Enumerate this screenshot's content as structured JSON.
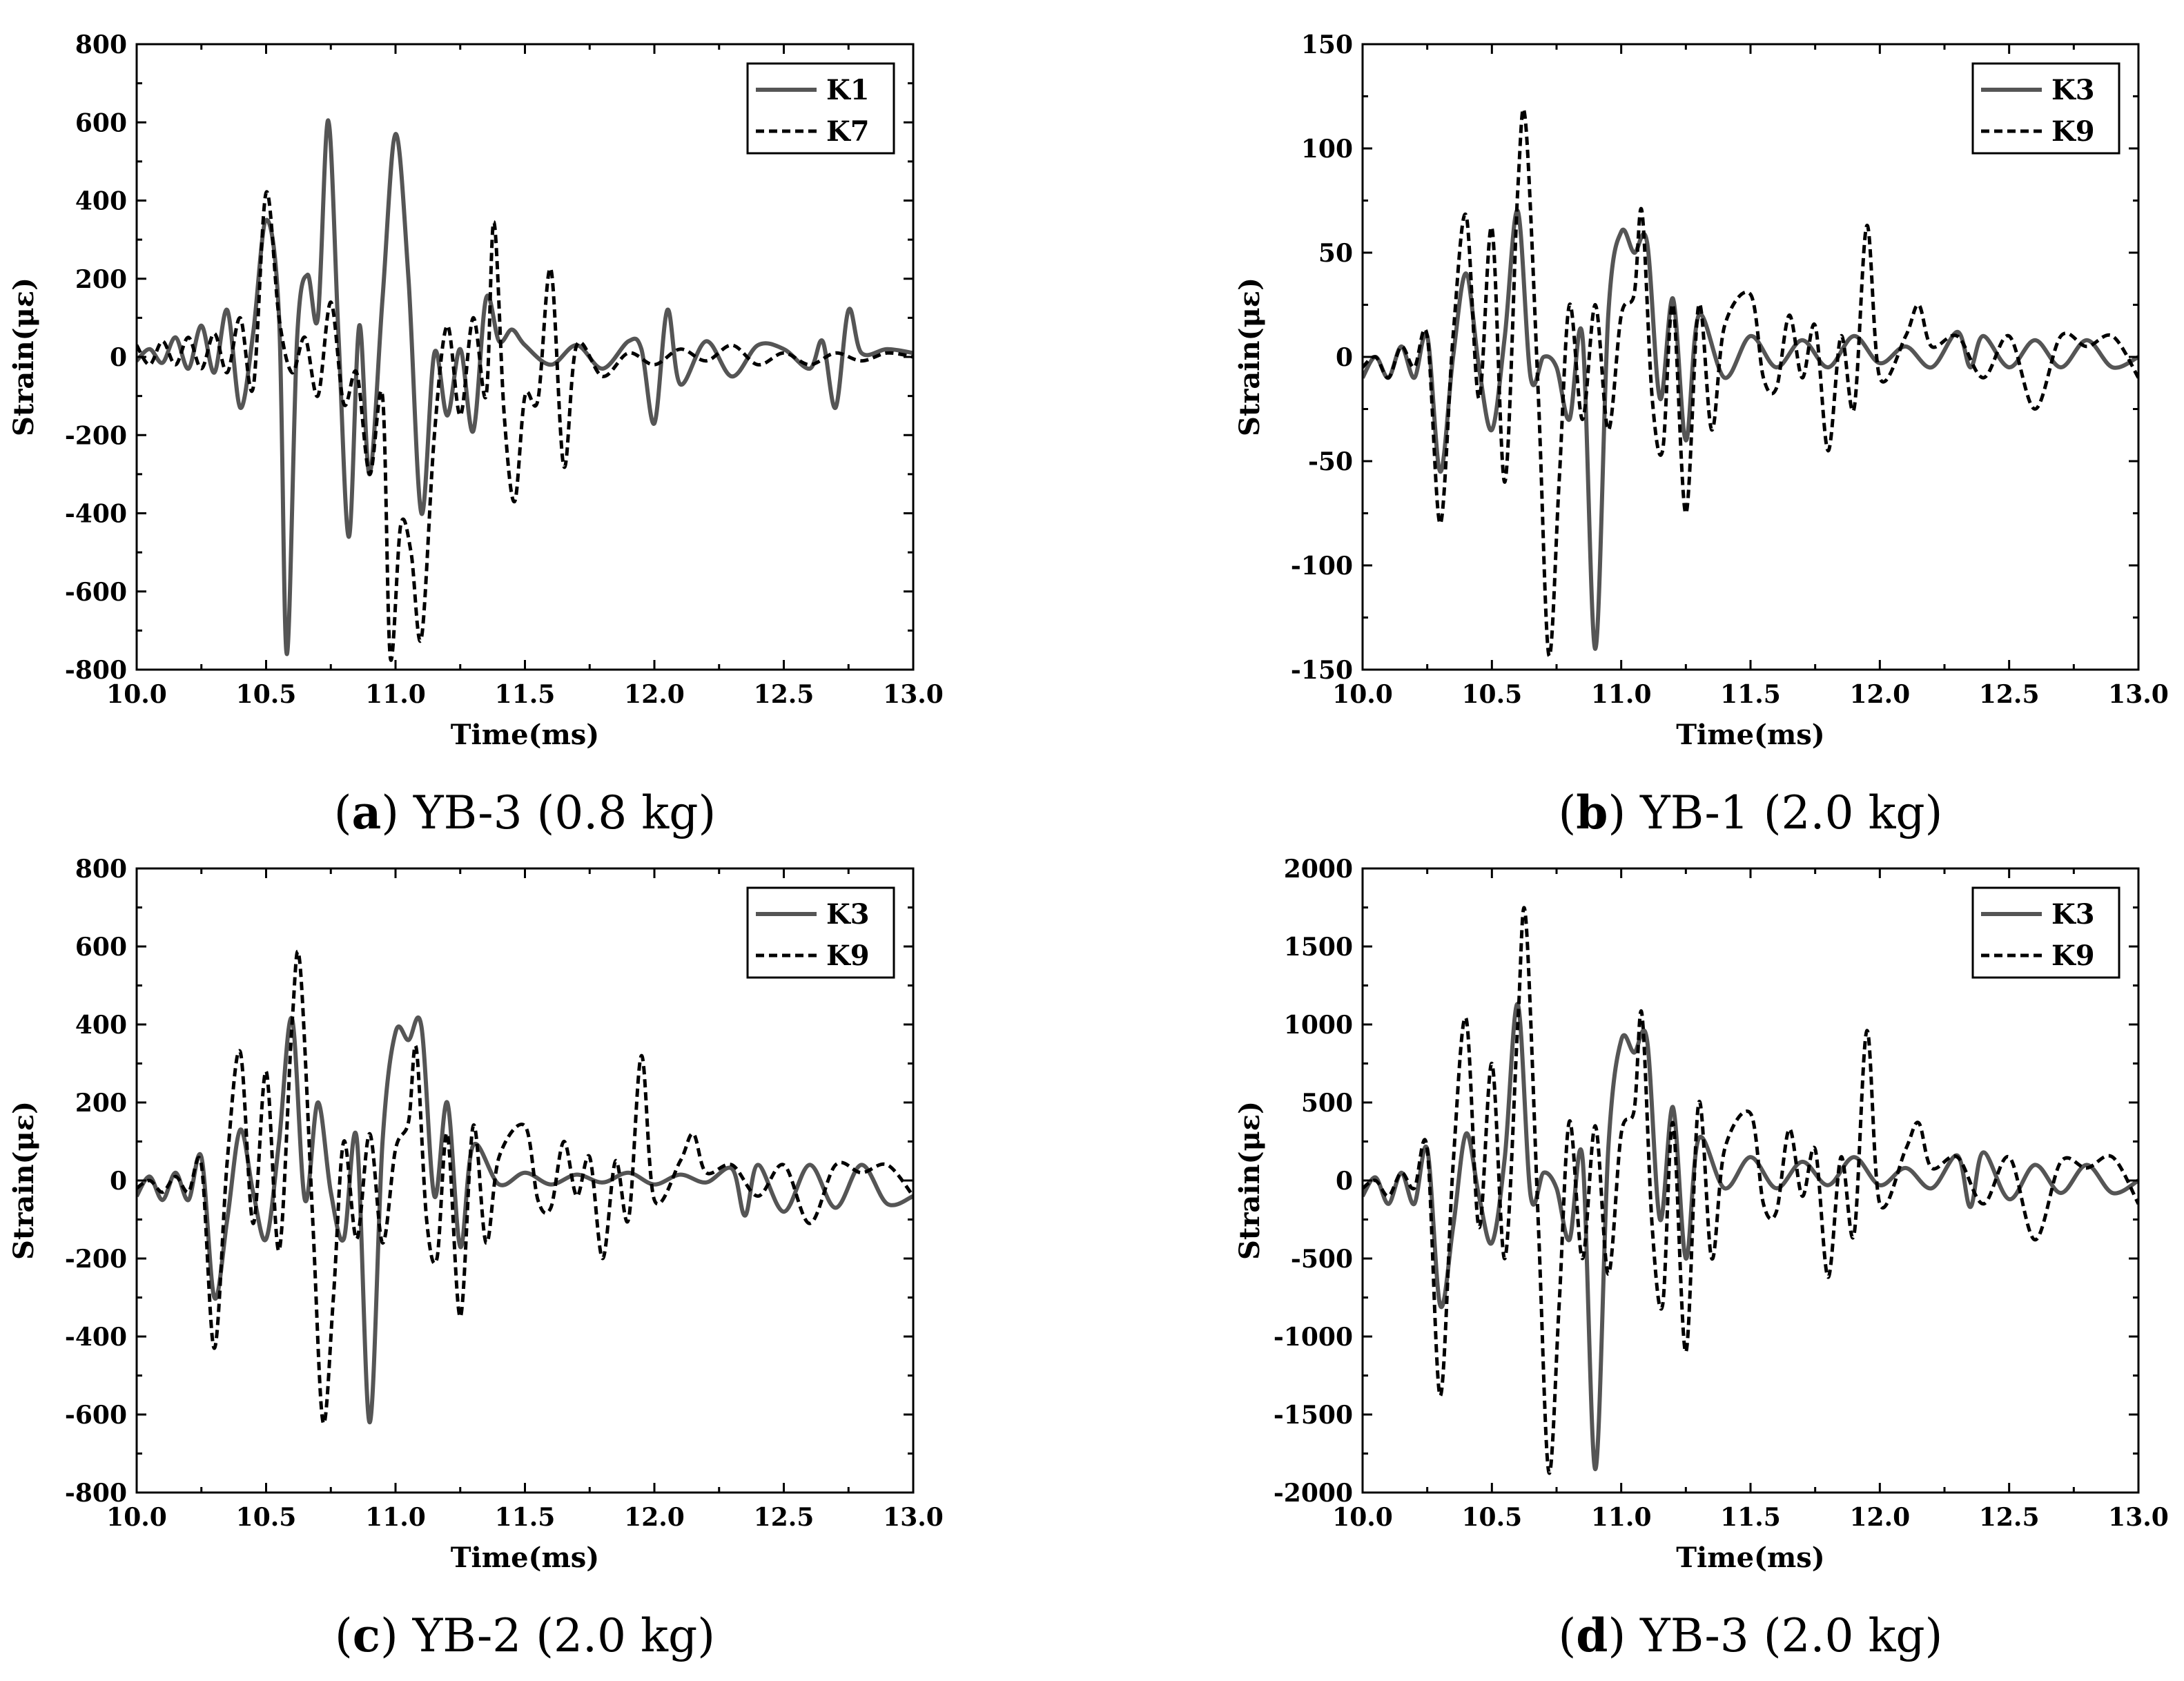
{
  "chart_data": [
    {
      "id": "a",
      "type": "line",
      "caption_letter": "a",
      "caption_text": "YB-3 (0.8 kg)",
      "xlabel": "Time(ms)",
      "ylabel": "Strain(με)",
      "xlim": [
        10.0,
        13.0
      ],
      "ylim": [
        -800,
        800
      ],
      "xticks": [
        "10.0",
        "10.5",
        "11.0",
        "11.5",
        "12.0",
        "12.5",
        "13.0"
      ],
      "yticks": [
        "-800",
        "-600",
        "-400",
        "-200",
        "0",
        "200",
        "400",
        "600",
        "800"
      ],
      "legend_position": "top-right",
      "series": [
        {
          "name": "K1",
          "style": "solid",
          "color": "#555555",
          "x": [
            10.0,
            10.05,
            10.1,
            10.15,
            10.2,
            10.25,
            10.3,
            10.35,
            10.4,
            10.45,
            10.5,
            10.55,
            10.58,
            10.62,
            10.66,
            10.7,
            10.74,
            10.78,
            10.82,
            10.86,
            10.9,
            10.95,
            11.0,
            11.05,
            11.1,
            11.15,
            11.2,
            11.25,
            11.3,
            11.35,
            11.4,
            11.45,
            11.5,
            11.6,
            11.7,
            11.8,
            11.9,
            11.95,
            12.0,
            12.05,
            12.1,
            12.2,
            12.3,
            12.4,
            12.5,
            12.6,
            12.65,
            12.7,
            12.75,
            12.8,
            12.9,
            13.0
          ],
          "values": [
            -10,
            20,
            -15,
            50,
            -30,
            80,
            -40,
            120,
            -130,
            60,
            350,
            100,
            -760,
            50,
            210,
            100,
            605,
            50,
            -460,
            80,
            -300,
            150,
            570,
            200,
            -400,
            10,
            -150,
            20,
            -190,
            150,
            40,
            70,
            30,
            -20,
            30,
            -30,
            40,
            20,
            -170,
            120,
            -70,
            40,
            -50,
            30,
            20,
            -30,
            40,
            -130,
            120,
            10,
            20,
            10
          ]
        },
        {
          "name": "K7",
          "style": "dashed",
          "color": "#000000",
          "x": [
            10.0,
            10.05,
            10.1,
            10.15,
            10.2,
            10.25,
            10.3,
            10.35,
            10.4,
            10.45,
            10.5,
            10.55,
            10.6,
            10.65,
            10.7,
            10.75,
            10.8,
            10.85,
            10.9,
            10.95,
            10.98,
            11.02,
            11.06,
            11.1,
            11.15,
            11.2,
            11.25,
            11.3,
            11.35,
            11.38,
            11.42,
            11.46,
            11.5,
            11.55,
            11.6,
            11.65,
            11.7,
            11.8,
            11.9,
            12.0,
            12.1,
            12.2,
            12.3,
            12.4,
            12.5,
            12.6,
            12.7,
            12.8,
            12.9,
            13.0
          ],
          "values": [
            30,
            -20,
            40,
            -20,
            50,
            -30,
            60,
            -40,
            100,
            -80,
            420,
            100,
            -40,
            50,
            -100,
            140,
            -120,
            -40,
            -300,
            -100,
            -770,
            -430,
            -500,
            -720,
            -200,
            80,
            -150,
            100,
            -100,
            345,
            -150,
            -370,
            -100,
            -110,
            225,
            -280,
            30,
            -50,
            10,
            -20,
            20,
            -10,
            30,
            -20,
            10,
            -20,
            10,
            -10,
            10,
            0
          ]
        }
      ]
    },
    {
      "id": "b",
      "type": "line",
      "caption_letter": "b",
      "caption_text": "YB-1 (2.0 kg)",
      "xlabel": "Time(ms)",
      "ylabel": "Strain(με)",
      "xlim": [
        10.0,
        13.0
      ],
      "ylim": [
        -150,
        150
      ],
      "xticks": [
        "10.0",
        "10.5",
        "11.0",
        "11.5",
        "12.0",
        "12.5",
        "13.0"
      ],
      "yticks": [
        "-150",
        "-100",
        "-50",
        "0",
        "50",
        "100",
        "150"
      ],
      "legend_position": "top-right",
      "series": [
        {
          "name": "K3",
          "style": "solid",
          "color": "#555555",
          "x": [
            10.0,
            10.05,
            10.1,
            10.15,
            10.2,
            10.25,
            10.3,
            10.35,
            10.4,
            10.45,
            10.5,
            10.55,
            10.6,
            10.65,
            10.7,
            10.75,
            10.8,
            10.85,
            10.9,
            10.95,
            11.0,
            11.05,
            11.1,
            11.15,
            11.2,
            11.25,
            11.3,
            11.4,
            11.5,
            11.6,
            11.7,
            11.8,
            11.9,
            12.0,
            12.1,
            12.2,
            12.3,
            12.35,
            12.4,
            12.5,
            12.6,
            12.7,
            12.8,
            12.9,
            13.0
          ],
          "values": [
            -10,
            0,
            -10,
            5,
            -10,
            10,
            -55,
            0,
            40,
            -5,
            -35,
            10,
            70,
            -10,
            0,
            -5,
            -30,
            10,
            -140,
            20,
            60,
            50,
            55,
            -20,
            28,
            -40,
            20,
            -10,
            10,
            -5,
            8,
            -5,
            10,
            -3,
            5,
            -5,
            12,
            -5,
            10,
            -5,
            8,
            -5,
            8,
            -5,
            0
          ]
        },
        {
          "name": "K9",
          "style": "dashed",
          "color": "#000000",
          "x": [
            10.0,
            10.05,
            10.1,
            10.15,
            10.2,
            10.25,
            10.3,
            10.35,
            10.4,
            10.45,
            10.5,
            10.55,
            10.6,
            10.63,
            10.68,
            10.72,
            10.76,
            10.8,
            10.85,
            10.9,
            10.95,
            11.0,
            11.05,
            11.08,
            11.12,
            11.16,
            11.2,
            11.25,
            11.3,
            11.35,
            11.4,
            11.5,
            11.55,
            11.6,
            11.65,
            11.7,
            11.75,
            11.8,
            11.85,
            11.9,
            11.95,
            12.0,
            12.1,
            12.15,
            12.2,
            12.3,
            12.4,
            12.5,
            12.6,
            12.7,
            12.8,
            12.9,
            13.0
          ],
          "values": [
            -5,
            0,
            -10,
            5,
            -5,
            10,
            -80,
            10,
            68,
            -20,
            62,
            -60,
            80,
            113,
            -20,
            -143,
            -60,
            25,
            -30,
            25,
            -35,
            20,
            30,
            70,
            -20,
            -45,
            25,
            -75,
            25,
            -35,
            15,
            30,
            -10,
            -15,
            20,
            -10,
            15,
            -45,
            10,
            -25,
            63,
            -10,
            10,
            25,
            5,
            10,
            -10,
            10,
            -25,
            10,
            5,
            10,
            -10
          ]
        }
      ]
    },
    {
      "id": "c",
      "type": "line",
      "caption_letter": "c",
      "caption_text": "YB-2 (2.0 kg)",
      "xlabel": "Time(ms)",
      "ylabel": "Strain(με)",
      "xlim": [
        10.0,
        13.0
      ],
      "ylim": [
        -800,
        800
      ],
      "xticks": [
        "10.0",
        "10.5",
        "11.0",
        "11.5",
        "12.0",
        "12.5",
        "13.0"
      ],
      "yticks": [
        "-800",
        "-600",
        "-400",
        "-200",
        "0",
        "200",
        "400",
        "600",
        "800"
      ],
      "legend_position": "top-right",
      "series": [
        {
          "name": "K3",
          "style": "solid",
          "color": "#555555",
          "x": [
            10.0,
            10.05,
            10.1,
            10.15,
            10.2,
            10.25,
            10.3,
            10.35,
            10.4,
            10.45,
            10.5,
            10.55,
            10.6,
            10.65,
            10.7,
            10.75,
            10.8,
            10.85,
            10.9,
            10.95,
            11.0,
            11.05,
            11.1,
            11.15,
            11.2,
            11.25,
            11.3,
            11.4,
            11.5,
            11.6,
            11.7,
            11.8,
            11.9,
            12.0,
            12.1,
            12.2,
            12.3,
            12.35,
            12.4,
            12.5,
            12.6,
            12.7,
            12.8,
            12.9,
            13.0
          ],
          "values": [
            -40,
            10,
            -50,
            20,
            -50,
            60,
            -300,
            -100,
            130,
            -30,
            -150,
            100,
            415,
            -50,
            200,
            -30,
            -150,
            110,
            -620,
            100,
            380,
            360,
            395,
            -40,
            200,
            -170,
            90,
            -10,
            20,
            -10,
            15,
            -5,
            20,
            -10,
            15,
            -5,
            30,
            -90,
            40,
            -80,
            40,
            -70,
            40,
            -60,
            -40
          ]
        },
        {
          "name": "K9",
          "style": "dashed",
          "color": "#000000",
          "x": [
            10.0,
            10.05,
            10.1,
            10.15,
            10.2,
            10.25,
            10.3,
            10.35,
            10.4,
            10.45,
            10.5,
            10.55,
            10.6,
            10.63,
            10.68,
            10.72,
            10.76,
            10.8,
            10.85,
            10.9,
            10.95,
            11.0,
            11.05,
            11.08,
            11.12,
            11.16,
            11.2,
            11.25,
            11.3,
            11.35,
            11.4,
            11.5,
            11.55,
            11.6,
            11.65,
            11.7,
            11.75,
            11.8,
            11.85,
            11.9,
            11.95,
            12.0,
            12.1,
            12.15,
            12.2,
            12.3,
            12.4,
            12.5,
            12.6,
            12.7,
            12.8,
            12.9,
            13.0
          ],
          "values": [
            -20,
            0,
            -30,
            10,
            -30,
            40,
            -430,
            50,
            330,
            -110,
            280,
            -180,
            400,
            560,
            -100,
            -620,
            -300,
            100,
            -150,
            120,
            -160,
            80,
            150,
            340,
            -100,
            -200,
            120,
            -350,
            140,
            -160,
            60,
            140,
            -50,
            -70,
            100,
            -40,
            60,
            -200,
            50,
            -100,
            320,
            -50,
            50,
            120,
            20,
            40,
            -40,
            40,
            -110,
            40,
            20,
            40,
            -40
          ]
        }
      ]
    },
    {
      "id": "d",
      "type": "line",
      "caption_letter": "d",
      "caption_text": "YB-3 (2.0 kg)",
      "xlabel": "Time(ms)",
      "ylabel": "Strain(με)",
      "xlim": [
        10.0,
        13.0
      ],
      "ylim": [
        -2000,
        2000
      ],
      "xticks": [
        "10.0",
        "10.5",
        "11.0",
        "11.5",
        "12.0",
        "12.5",
        "13.0"
      ],
      "yticks": [
        "-2000",
        "-1500",
        "-1000",
        "-500",
        "0",
        "500",
        "1000",
        "1500",
        "2000"
      ],
      "legend_position": "top-right",
      "series": [
        {
          "name": "K3",
          "style": "solid",
          "color": "#555555",
          "x": [
            10.0,
            10.05,
            10.1,
            10.15,
            10.2,
            10.25,
            10.3,
            10.35,
            10.4,
            10.45,
            10.5,
            10.55,
            10.6,
            10.65,
            10.7,
            10.75,
            10.8,
            10.85,
            10.9,
            10.95,
            11.0,
            11.05,
            11.1,
            11.15,
            11.2,
            11.25,
            11.3,
            11.4,
            11.5,
            11.6,
            11.7,
            11.8,
            11.9,
            12.0,
            12.1,
            12.2,
            12.3,
            12.35,
            12.4,
            12.5,
            12.6,
            12.7,
            12.8,
            12.9,
            13.0
          ],
          "values": [
            -100,
            20,
            -150,
            50,
            -150,
            200,
            -800,
            -300,
            300,
            -100,
            -400,
            150,
            1130,
            -100,
            50,
            -50,
            -380,
            150,
            -1850,
            200,
            900,
            820,
            900,
            -250,
            470,
            -500,
            270,
            -50,
            150,
            -50,
            120,
            -30,
            150,
            -30,
            80,
            -50,
            160,
            -170,
            180,
            -120,
            100,
            -80,
            100,
            -80,
            0
          ]
        },
        {
          "name": "K9",
          "style": "dashed",
          "color": "#000000",
          "x": [
            10.0,
            10.05,
            10.1,
            10.15,
            10.2,
            10.25,
            10.3,
            10.35,
            10.4,
            10.45,
            10.5,
            10.55,
            10.6,
            10.63,
            10.68,
            10.72,
            10.76,
            10.8,
            10.85,
            10.9,
            10.95,
            11.0,
            11.05,
            11.08,
            11.12,
            11.16,
            11.2,
            11.25,
            11.3,
            11.35,
            11.4,
            11.5,
            11.55,
            11.6,
            11.65,
            11.7,
            11.75,
            11.8,
            11.85,
            11.9,
            11.95,
            12.0,
            12.1,
            12.15,
            12.2,
            12.3,
            12.4,
            12.5,
            12.6,
            12.7,
            12.8,
            12.9,
            13.0
          ],
          "values": [
            -50,
            0,
            -100,
            50,
            -50,
            200,
            -1380,
            100,
            1040,
            -300,
            750,
            -500,
            1000,
            1700,
            -300,
            -1870,
            -800,
            380,
            -500,
            350,
            -600,
            300,
            450,
            1070,
            -300,
            -800,
            370,
            -1100,
            500,
            -500,
            200,
            430,
            -150,
            -200,
            330,
            -100,
            200,
            -620,
            150,
            -350,
            960,
            -150,
            200,
            370,
            80,
            150,
            -150,
            150,
            -380,
            120,
            80,
            150,
            -150
          ]
        }
      ]
    }
  ]
}
